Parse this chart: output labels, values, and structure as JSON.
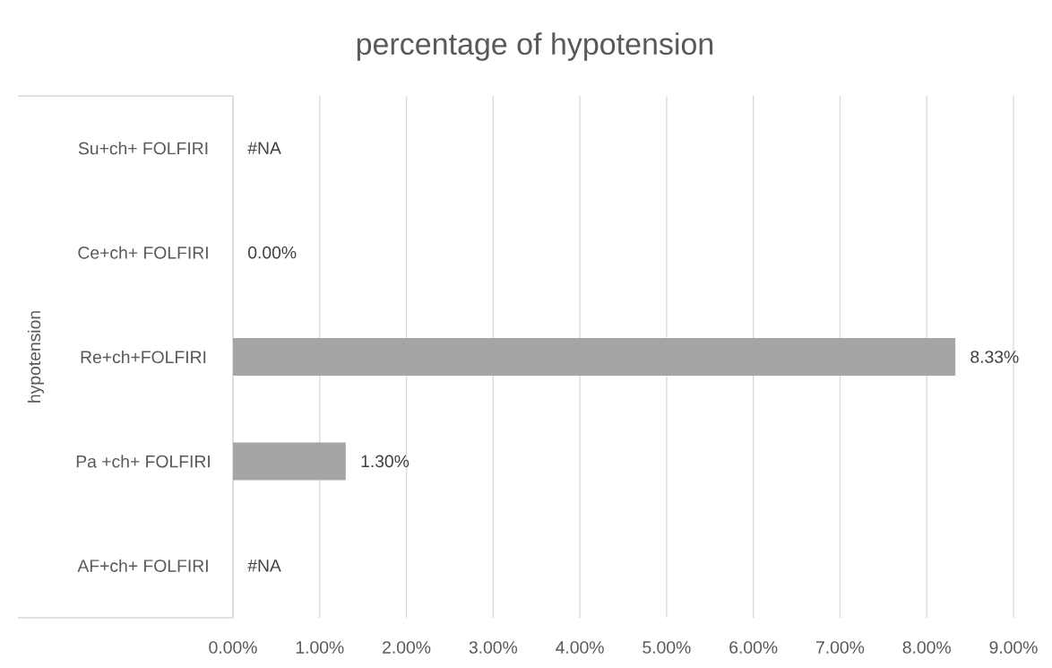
{
  "chart_data": {
    "type": "bar",
    "orientation": "horizontal",
    "title": "percentage of hypotension",
    "ylabel": "hypotension",
    "categories": [
      "Su+ch+ FOLFIRI",
      "Ce+ch+ FOLFIRI",
      "Re+ch+FOLFIRI",
      "Pa +ch+ FOLFIRI",
      "AF+ch+ FOLFIRI"
    ],
    "values": [
      null,
      0,
      8.33,
      1.3,
      null
    ],
    "value_labels": [
      "#NA",
      "0.00%",
      "8.33%",
      "1.30%",
      "#NA"
    ],
    "color": "#a5a5a5",
    "xlim": [
      0,
      9
    ],
    "xticks": [
      {
        "value": 0,
        "label": "0.00%"
      },
      {
        "value": 1,
        "label": "1.00%"
      },
      {
        "value": 2,
        "label": "2.00%"
      },
      {
        "value": 3,
        "label": "3.00%"
      },
      {
        "value": 4,
        "label": "4.00%"
      },
      {
        "value": 5,
        "label": "5.00%"
      },
      {
        "value": 6,
        "label": "6.00%"
      },
      {
        "value": 7,
        "label": "7.00%"
      },
      {
        "value": 8,
        "label": "8.00%"
      },
      {
        "value": 9,
        "label": "9.00%"
      }
    ],
    "grid": "x"
  }
}
